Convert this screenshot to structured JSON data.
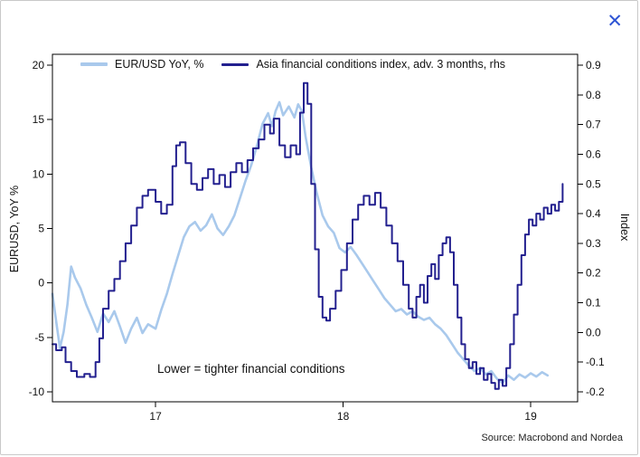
{
  "window": {
    "close_symbol": "✕"
  },
  "legend": [
    {
      "label": "EUR/USD YoY, %",
      "color": "#a9c9ec"
    },
    {
      "label": "Asia financial conditions index, adv. 3 months, rhs",
      "color": "#23208f"
    }
  ],
  "annotation": "Lower = tighter financial conditions",
  "source": "Source: Macrobond and Nordea",
  "axes": {
    "left_label": "EURUSD, YoY %",
    "right_label": "Index",
    "left_ticks": [
      20,
      15,
      10,
      5,
      0,
      -5,
      -10
    ],
    "right_ticks": [
      "0.9",
      "0.8",
      "0.7",
      "0.6",
      "0.5",
      "0.4",
      "0.3",
      "0.2",
      "0.1",
      "0.0",
      "-0.1",
      "-0.2"
    ],
    "x_ticks": [
      {
        "v": 2017,
        "label": "17"
      },
      {
        "v": 2018,
        "label": "18"
      },
      {
        "v": 2019,
        "label": "19"
      }
    ]
  },
  "chart_data": {
    "type": "line",
    "title": "",
    "xlabel": "",
    "ylabel_left": "EURUSD, YoY %",
    "ylabel_right": "Index",
    "x_range": [
      2016.45,
      2019.25
    ],
    "left_ylim": [
      -10.92,
      21.0
    ],
    "right_ylim": [
      -0.2337,
      0.9367
    ],
    "grid": false,
    "legend_position": "top-inside",
    "series": [
      {
        "name": "EUR/USD YoY, %",
        "axis": "left",
        "color": "#a9c9ec",
        "width": 2.6,
        "style": "linear",
        "points": [
          [
            2016.45,
            -1.0
          ],
          [
            2016.47,
            -3.5
          ],
          [
            2016.49,
            -6.0
          ],
          [
            2016.51,
            -4.5
          ],
          [
            2016.53,
            -2.0
          ],
          [
            2016.55,
            1.5
          ],
          [
            2016.57,
            0.5
          ],
          [
            2016.6,
            -0.5
          ],
          [
            2016.63,
            -2.0
          ],
          [
            2016.66,
            -3.2
          ],
          [
            2016.69,
            -4.5
          ],
          [
            2016.72,
            -2.8
          ],
          [
            2016.75,
            -3.6
          ],
          [
            2016.78,
            -2.6
          ],
          [
            2016.81,
            -4.0
          ],
          [
            2016.84,
            -5.5
          ],
          [
            2016.87,
            -4.2
          ],
          [
            2016.9,
            -3.2
          ],
          [
            2016.93,
            -4.6
          ],
          [
            2016.96,
            -3.8
          ],
          [
            2017.0,
            -4.2
          ],
          [
            2017.03,
            -2.5
          ],
          [
            2017.06,
            -1.0
          ],
          [
            2017.09,
            0.8
          ],
          [
            2017.12,
            2.5
          ],
          [
            2017.15,
            4.2
          ],
          [
            2017.18,
            5.2
          ],
          [
            2017.21,
            5.6
          ],
          [
            2017.24,
            4.8
          ],
          [
            2017.27,
            5.3
          ],
          [
            2017.3,
            6.3
          ],
          [
            2017.33,
            5.0
          ],
          [
            2017.36,
            4.4
          ],
          [
            2017.39,
            5.2
          ],
          [
            2017.42,
            6.2
          ],
          [
            2017.45,
            7.8
          ],
          [
            2017.48,
            9.4
          ],
          [
            2017.51,
            10.8
          ],
          [
            2017.54,
            12.6
          ],
          [
            2017.57,
            14.6
          ],
          [
            2017.6,
            15.6
          ],
          [
            2017.62,
            14.4
          ],
          [
            2017.64,
            15.8
          ],
          [
            2017.66,
            16.6
          ],
          [
            2017.68,
            15.4
          ],
          [
            2017.71,
            16.2
          ],
          [
            2017.74,
            15.2
          ],
          [
            2017.76,
            16.4
          ],
          [
            2017.78,
            15.8
          ],
          [
            2017.8,
            13.4
          ],
          [
            2017.83,
            10.6
          ],
          [
            2017.86,
            8.2
          ],
          [
            2017.89,
            6.2
          ],
          [
            2017.92,
            5.2
          ],
          [
            2017.95,
            4.6
          ],
          [
            2017.98,
            3.2
          ],
          [
            2018.01,
            2.8
          ],
          [
            2018.04,
            3.3
          ],
          [
            2018.07,
            2.6
          ],
          [
            2018.1,
            1.8
          ],
          [
            2018.13,
            1.0
          ],
          [
            2018.16,
            0.2
          ],
          [
            2018.19,
            -0.6
          ],
          [
            2018.22,
            -1.4
          ],
          [
            2018.25,
            -2.0
          ],
          [
            2018.28,
            -2.6
          ],
          [
            2018.31,
            -2.4
          ],
          [
            2018.34,
            -2.9
          ],
          [
            2018.37,
            -2.6
          ],
          [
            2018.4,
            -3.1
          ],
          [
            2018.43,
            -3.4
          ],
          [
            2018.46,
            -3.2
          ],
          [
            2018.49,
            -3.8
          ],
          [
            2018.52,
            -4.2
          ],
          [
            2018.55,
            -4.8
          ],
          [
            2018.58,
            -5.6
          ],
          [
            2018.61,
            -6.4
          ],
          [
            2018.64,
            -7.0
          ],
          [
            2018.67,
            -7.6
          ],
          [
            2018.7,
            -8.1
          ],
          [
            2018.73,
            -7.8
          ],
          [
            2018.76,
            -8.4
          ],
          [
            2018.79,
            -8.1
          ],
          [
            2018.82,
            -8.8
          ],
          [
            2018.85,
            -9.2
          ],
          [
            2018.88,
            -8.5
          ],
          [
            2018.91,
            -8.9
          ],
          [
            2018.94,
            -8.4
          ],
          [
            2018.97,
            -8.7
          ],
          [
            2019.0,
            -8.3
          ],
          [
            2019.03,
            -8.6
          ],
          [
            2019.06,
            -8.2
          ],
          [
            2019.09,
            -8.5
          ]
        ]
      },
      {
        "name": "Asia financial conditions index, adv. 3 months, rhs",
        "axis": "right",
        "color": "#23208f",
        "width": 2,
        "style": "step",
        "points": [
          [
            2016.45,
            -0.04
          ],
          [
            2016.47,
            -0.06
          ],
          [
            2016.5,
            -0.05
          ],
          [
            2016.52,
            -0.1
          ],
          [
            2016.55,
            -0.13
          ],
          [
            2016.58,
            -0.15
          ],
          [
            2016.62,
            -0.14
          ],
          [
            2016.65,
            -0.15
          ],
          [
            2016.68,
            -0.1
          ],
          [
            2016.7,
            -0.02
          ],
          [
            2016.72,
            0.08
          ],
          [
            2016.75,
            0.14
          ],
          [
            2016.78,
            0.18
          ],
          [
            2016.81,
            0.24
          ],
          [
            2016.84,
            0.3
          ],
          [
            2016.87,
            0.36
          ],
          [
            2016.9,
            0.42
          ],
          [
            2016.93,
            0.46
          ],
          [
            2016.96,
            0.48
          ],
          [
            2017.0,
            0.44
          ],
          [
            2017.03,
            0.4
          ],
          [
            2017.06,
            0.43
          ],
          [
            2017.09,
            0.56
          ],
          [
            2017.11,
            0.63
          ],
          [
            2017.13,
            0.64
          ],
          [
            2017.16,
            0.57
          ],
          [
            2017.19,
            0.5
          ],
          [
            2017.22,
            0.48
          ],
          [
            2017.25,
            0.52
          ],
          [
            2017.28,
            0.55
          ],
          [
            2017.31,
            0.5
          ],
          [
            2017.34,
            0.53
          ],
          [
            2017.37,
            0.49
          ],
          [
            2017.4,
            0.54
          ],
          [
            2017.43,
            0.57
          ],
          [
            2017.46,
            0.54
          ],
          [
            2017.49,
            0.58
          ],
          [
            2017.52,
            0.62
          ],
          [
            2017.55,
            0.65
          ],
          [
            2017.58,
            0.7
          ],
          [
            2017.61,
            0.67
          ],
          [
            2017.63,
            0.72
          ],
          [
            2017.66,
            0.63
          ],
          [
            2017.69,
            0.59
          ],
          [
            2017.72,
            0.63
          ],
          [
            2017.75,
            0.6
          ],
          [
            2017.77,
            0.74
          ],
          [
            2017.79,
            0.84
          ],
          [
            2017.81,
            0.77
          ],
          [
            2017.83,
            0.5
          ],
          [
            2017.85,
            0.28
          ],
          [
            2017.87,
            0.12
          ],
          [
            2017.89,
            0.05
          ],
          [
            2017.91,
            0.04
          ],
          [
            2017.93,
            0.08
          ],
          [
            2017.96,
            0.14
          ],
          [
            2017.99,
            0.21
          ],
          [
            2018.02,
            0.3
          ],
          [
            2018.05,
            0.38
          ],
          [
            2018.08,
            0.43
          ],
          [
            2018.11,
            0.46
          ],
          [
            2018.14,
            0.43
          ],
          [
            2018.17,
            0.47
          ],
          [
            2018.2,
            0.42
          ],
          [
            2018.23,
            0.36
          ],
          [
            2018.26,
            0.3
          ],
          [
            2018.29,
            0.24
          ],
          [
            2018.32,
            0.16
          ],
          [
            2018.35,
            0.08
          ],
          [
            2018.37,
            0.05
          ],
          [
            2018.39,
            0.12
          ],
          [
            2018.41,
            0.16
          ],
          [
            2018.43,
            0.1
          ],
          [
            2018.45,
            0.19
          ],
          [
            2018.47,
            0.23
          ],
          [
            2018.49,
            0.18
          ],
          [
            2018.51,
            0.26
          ],
          [
            2018.53,
            0.3
          ],
          [
            2018.55,
            0.32
          ],
          [
            2018.57,
            0.27
          ],
          [
            2018.59,
            0.16
          ],
          [
            2018.61,
            0.05
          ],
          [
            2018.63,
            -0.04
          ],
          [
            2018.65,
            -0.09
          ],
          [
            2018.67,
            -0.12
          ],
          [
            2018.69,
            -0.1
          ],
          [
            2018.71,
            -0.14
          ],
          [
            2018.73,
            -0.12
          ],
          [
            2018.75,
            -0.16
          ],
          [
            2018.77,
            -0.14
          ],
          [
            2018.79,
            -0.17
          ],
          [
            2018.81,
            -0.19
          ],
          [
            2018.83,
            -0.16
          ],
          [
            2018.85,
            -0.18
          ],
          [
            2018.87,
            -0.12
          ],
          [
            2018.89,
            -0.04
          ],
          [
            2018.91,
            0.06
          ],
          [
            2018.93,
            0.16
          ],
          [
            2018.95,
            0.26
          ],
          [
            2018.97,
            0.33
          ],
          [
            2018.99,
            0.38
          ],
          [
            2019.01,
            0.36
          ],
          [
            2019.03,
            0.4
          ],
          [
            2019.05,
            0.38
          ],
          [
            2019.07,
            0.42
          ],
          [
            2019.09,
            0.4
          ],
          [
            2019.11,
            0.43
          ],
          [
            2019.13,
            0.41
          ],
          [
            2019.15,
            0.44
          ],
          [
            2019.17,
            0.5
          ]
        ]
      }
    ]
  }
}
